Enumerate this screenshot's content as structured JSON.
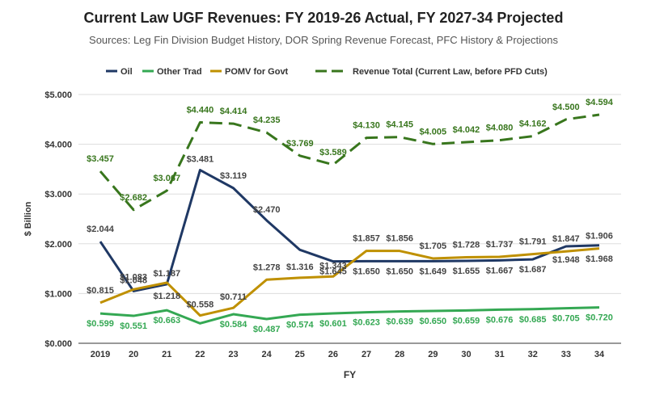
{
  "chart_data": {
    "type": "line",
    "title": "Current Law UGF Revenues: FY 2019-26 Actual, FY 2027-34 Projected",
    "subtitle": "Sources: Leg Fin Division Budget History, DOR Spring Revenue Forecast, PFC History & Projections",
    "xlabel": "FY",
    "ylabel": "$ Billion",
    "ylim": [
      0,
      5
    ],
    "yticks": [
      "$0.000",
      "$1.000",
      "$2.000",
      "$3.000",
      "$4.000",
      "$5.000"
    ],
    "categories": [
      "2019",
      "20",
      "21",
      "22",
      "23",
      "24",
      "25",
      "26",
      "27",
      "28",
      "29",
      "30",
      "31",
      "32",
      "33",
      "34"
    ],
    "grid": "horizontal",
    "legend": "top",
    "series": [
      {
        "name": "Oil",
        "color": "#1f3864",
        "dash": "solid",
        "values": [
          2.044,
          1.048,
          1.187,
          3.481,
          3.119,
          2.47,
          1.878,
          1.645,
          1.65,
          1.65,
          1.649,
          1.655,
          1.667,
          1.687,
          1.948,
          1.968
        ],
        "labels": [
          "$2.044",
          "$1.048",
          "$1.187",
          "$3.481",
          "$3.119",
          "$2.470",
          "",
          "$1.645",
          "$1.650",
          "$1.650",
          "$1.649",
          "$1.655",
          "$1.667",
          "$1.687",
          "$1.948",
          "$1.968"
        ]
      },
      {
        "name": "Other Trad",
        "color": "#34a853",
        "dash": "solid",
        "values": [
          0.599,
          0.551,
          0.663,
          0.4,
          0.584,
          0.487,
          0.574,
          0.601,
          0.623,
          0.639,
          0.65,
          0.659,
          0.676,
          0.685,
          0.705,
          0.72
        ],
        "labels": [
          "$0.599",
          "$0.551",
          "$0.663",
          "",
          "$0.584",
          "$0.487",
          "$0.574",
          "$0.601",
          "$0.623",
          "$0.639",
          "$0.650",
          "$0.659",
          "$0.676",
          "$0.685",
          "$0.705",
          "$0.720"
        ]
      },
      {
        "name": "POMV for Govt",
        "color": "#bf9000",
        "dash": "solid",
        "values": [
          0.815,
          1.083,
          1.218,
          0.558,
          0.711,
          1.278,
          1.316,
          1.343,
          1.857,
          1.856,
          1.705,
          1.728,
          1.737,
          1.791,
          1.847,
          1.906
        ],
        "labels": [
          "$0.815",
          "$1.083",
          "$1.218",
          "$0.558",
          "$0.711",
          "$1.278",
          "$1.316",
          "$1.343",
          "$1.857",
          "$1.856",
          "$1.705",
          "$1.728",
          "$1.737",
          "$1.791",
          "$1.847",
          "$1.906"
        ]
      },
      {
        "name": "Revenue Total (Current Law, before PFD Cuts)",
        "color": "#38761d",
        "dash": "dashed",
        "values": [
          3.457,
          2.682,
          3.067,
          4.44,
          4.414,
          4.235,
          3.769,
          3.589,
          4.13,
          4.145,
          4.005,
          4.042,
          4.08,
          4.162,
          4.5,
          4.594
        ],
        "labels": [
          "$3.457",
          "$2.682",
          "$3.067",
          "$4.440",
          "$4.414",
          "$4.235",
          "$3.769",
          "$3.589",
          "$4.130",
          "$4.145",
          "$4.005",
          "$4.042",
          "$4.080",
          "$4.162",
          "$4.500",
          "$4.594"
        ]
      }
    ]
  }
}
